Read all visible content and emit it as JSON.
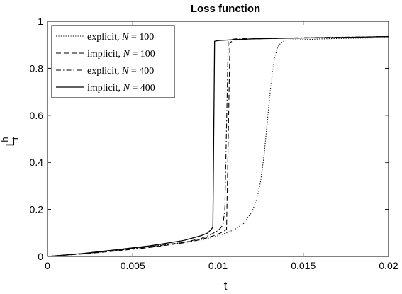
{
  "chart_data": {
    "type": "line",
    "title": "Loss function",
    "xlabel": "t",
    "ylabel_main": "L",
    "ylabel_sup": "h",
    "ylabel_sub": "t",
    "xlim": [
      0,
      0.02
    ],
    "ylim": [
      0,
      1
    ],
    "xticks": [
      0,
      0.005,
      0.01,
      0.015,
      0.02
    ],
    "xtick_labels": [
      "0",
      "0.005",
      "0.01",
      "0.015",
      "0.02"
    ],
    "yticks": [
      0,
      0.2,
      0.4,
      0.6,
      0.8,
      1
    ],
    "ytick_labels": [
      "0",
      "0.2",
      "0.4",
      "0.6",
      "0.8",
      "1"
    ],
    "grid": false,
    "legend_position": "top-left",
    "series": [
      {
        "label": "explicit, ",
        "label_n": "N",
        "label_eq": " = 100",
        "style": "dotted",
        "x": [
          0,
          0.002,
          0.004,
          0.006,
          0.008,
          0.009,
          0.0095,
          0.01,
          0.0105,
          0.011,
          0.0115,
          0.012,
          0.0123,
          0.0125,
          0.0127,
          0.0129,
          0.0131,
          0.0133,
          0.0135,
          0.0137,
          0.014,
          0.015,
          0.016,
          0.018,
          0.02
        ],
        "y": [
          0,
          0.012,
          0.026,
          0.042,
          0.06,
          0.07,
          0.078,
          0.088,
          0.1,
          0.116,
          0.14,
          0.19,
          0.25,
          0.32,
          0.43,
          0.58,
          0.73,
          0.84,
          0.89,
          0.91,
          0.92,
          0.922,
          0.925,
          0.928,
          0.93
        ]
      },
      {
        "label": "implicit, ",
        "label_n": "N",
        "label_eq": " = 100",
        "style": "dashed",
        "x": [
          0,
          0.002,
          0.004,
          0.006,
          0.008,
          0.009,
          0.0095,
          0.01,
          0.0103,
          0.0105,
          0.0106,
          0.0107,
          0.011,
          0.012,
          0.014,
          0.016,
          0.018,
          0.02
        ],
        "y": [
          0,
          0.01,
          0.023,
          0.038,
          0.058,
          0.072,
          0.082,
          0.095,
          0.105,
          0.115,
          0.5,
          0.91,
          0.92,
          0.925,
          0.928,
          0.93,
          0.932,
          0.935
        ]
      },
      {
        "label": "explicit, ",
        "label_n": "N",
        "label_eq": " = 400",
        "style": "dashdot",
        "x": [
          0,
          0.002,
          0.004,
          0.006,
          0.008,
          0.009,
          0.0095,
          0.01,
          0.0102,
          0.0103,
          0.0104,
          0.0105,
          0.0106,
          0.011,
          0.012,
          0.014,
          0.016,
          0.018,
          0.02
        ],
        "y": [
          0,
          0.011,
          0.025,
          0.041,
          0.06,
          0.076,
          0.09,
          0.11,
          0.125,
          0.14,
          0.2,
          0.55,
          0.92,
          0.925,
          0.927,
          0.929,
          0.931,
          0.933,
          0.935
        ]
      },
      {
        "label": "implicit, ",
        "label_n": "N",
        "label_eq": " = 400",
        "style": "solid",
        "x": [
          0,
          0.002,
          0.004,
          0.006,
          0.008,
          0.009,
          0.0094,
          0.0096,
          0.0097,
          0.0098,
          0.01,
          0.011,
          0.012,
          0.014,
          0.016,
          0.018,
          0.02
        ],
        "y": [
          0,
          0.012,
          0.028,
          0.045,
          0.068,
          0.088,
          0.1,
          0.115,
          0.125,
          0.915,
          0.918,
          0.922,
          0.925,
          0.928,
          0.93,
          0.932,
          0.935
        ]
      }
    ]
  }
}
